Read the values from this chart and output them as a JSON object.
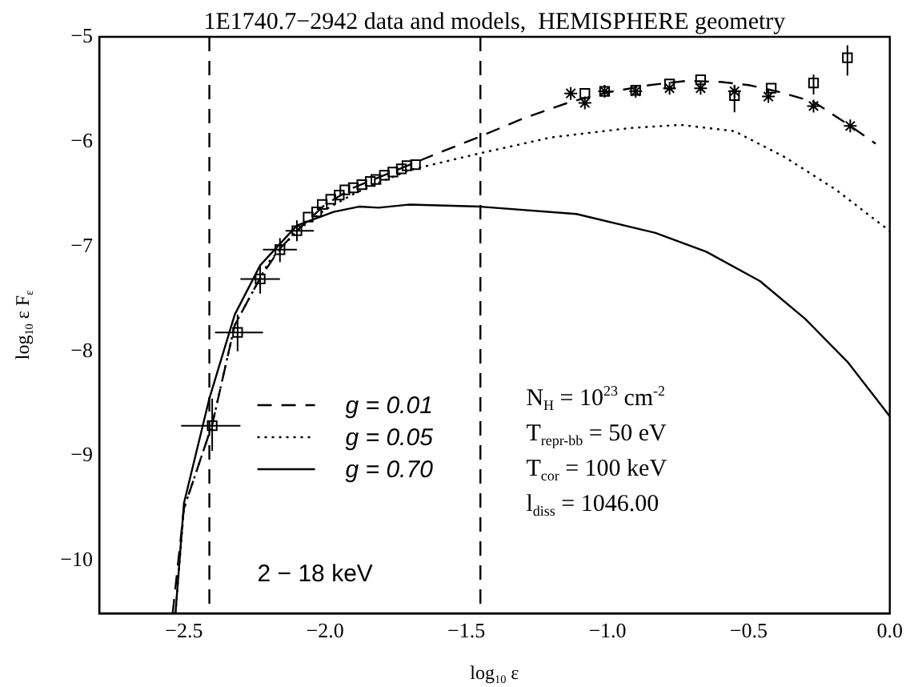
{
  "chart_data": {
    "type": "scatter",
    "title": "1E1740.7−2942 data and models,  HEMISPHERE geometry",
    "xlabel": "log$_{10}$ ε",
    "ylabel": "log$_{10}$ ε F$_{ε}$",
    "xlim": [
      -2.8,
      0.0
    ],
    "xticks": [
      {
        "value": -2.5,
        "label": "−2.5"
      },
      {
        "value": -2.0,
        "label": "−2.0"
      },
      {
        "value": -1.5,
        "label": "−1.5"
      },
      {
        "value": -1.0,
        "label": "−1.0"
      },
      {
        "value": -0.5,
        "label": "−0.5"
      },
      {
        "value": 0.0,
        "label": "0.0"
      }
    ],
    "ylim": [
      -10.5,
      -5
    ],
    "yticks": [
      {
        "value": -10,
        "label": "−10"
      },
      {
        "value": -9,
        "label": "−9"
      },
      {
        "value": -8,
        "label": "−8"
      },
      {
        "value": -7,
        "label": "−7"
      },
      {
        "value": -6,
        "label": "−6"
      },
      {
        "value": -5,
        "label": "−5"
      }
    ],
    "grid": false,
    "legend": "bottom left",
    "ref_lines": [
      {
        "axis": "x",
        "value": -2.41,
        "line_style": "dashed",
        "color": "#000000"
      },
      {
        "axis": "x",
        "value": -1.45,
        "line_style": "dashed",
        "color": "#000000"
      }
    ],
    "annotations": [
      "2 − 18 keV",
      "N$_{H}$ = 10$^{23}$ cm$^{-2}$",
      "T$_{repr-bb}$ = 50 eV",
      "T$_{cor}$ = 100 keV",
      "l$_{diss}$ = 1046.00"
    ],
    "series": [
      {
        "name": "g = 0.01",
        "type": "line",
        "line_style": "dashed",
        "marker": "none",
        "color": "#000000",
        "x": [
          -2.54,
          -2.5,
          -2.4,
          -2.32,
          -2.23,
          -2.16,
          -2.1,
          -2.0,
          -1.9,
          -1.8,
          -1.7,
          -1.6,
          -1.45,
          -1.3,
          -1.13,
          -1.0,
          -0.85,
          -0.72,
          -0.6,
          -0.5,
          -0.4,
          -0.27,
          -0.14,
          -0.05
        ],
        "values": [
          -10.5,
          -9.5,
          -8.7,
          -7.75,
          -7.3,
          -7.02,
          -6.85,
          -6.6,
          -6.44,
          -6.33,
          -6.22,
          -6.11,
          -5.95,
          -5.78,
          -5.62,
          -5.53,
          -5.46,
          -5.42,
          -5.43,
          -5.46,
          -5.52,
          -5.62,
          -5.85,
          -6.02
        ]
      },
      {
        "name": "g = 0.05",
        "type": "line",
        "line_style": "dotted",
        "marker": "none",
        "color": "#000000",
        "x": [
          -2.53,
          -2.5,
          -2.4,
          -2.32,
          -2.2,
          -2.1,
          -2.0,
          -1.9,
          -1.8,
          -1.7,
          -1.45,
          -1.2,
          -0.92,
          -0.74,
          -0.55,
          -0.37,
          -0.19,
          -0.04,
          0.0
        ],
        "values": [
          -10.5,
          -9.5,
          -8.7,
          -7.75,
          -7.15,
          -6.85,
          -6.65,
          -6.5,
          -6.38,
          -6.27,
          -6.11,
          -5.96,
          -5.87,
          -5.84,
          -5.9,
          -6.15,
          -6.46,
          -6.77,
          -6.85
        ]
      },
      {
        "name": "g = 0.70",
        "type": "line",
        "line_style": "solid",
        "marker": "none",
        "color": "#000000",
        "x": [
          -2.53,
          -2.5,
          -2.41,
          -2.32,
          -2.23,
          -2.1,
          -1.97,
          -1.88,
          -1.81,
          -1.7,
          -1.45,
          -1.11,
          -0.83,
          -0.65,
          -0.46,
          -0.3,
          -0.15,
          0.0
        ],
        "values": [
          -10.5,
          -9.45,
          -8.45,
          -7.65,
          -7.18,
          -6.8,
          -6.67,
          -6.62,
          -6.63,
          -6.6,
          -6.62,
          -6.69,
          -6.87,
          -7.05,
          -7.33,
          -7.69,
          -8.1,
          -8.62
        ]
      },
      {
        "marker": "square",
        "color": "#000000",
        "x": [
          -2.4,
          -2.31,
          -2.23,
          -2.16,
          -2.1,
          -2.06,
          -2.03,
          -2.01,
          -1.98,
          -1.95,
          -1.93,
          -1.9,
          -1.87,
          -1.84,
          -1.82,
          -1.79,
          -1.76,
          -1.73,
          -1.71,
          -1.68,
          -1.08,
          -1.01,
          -0.9,
          -0.78,
          -0.67,
          -0.55,
          -0.42,
          -0.27,
          -0.15
        ],
        "values": [
          -8.71,
          -7.82,
          -7.31,
          -7.03,
          -6.85,
          -6.72,
          -6.67,
          -6.6,
          -6.55,
          -6.51,
          -6.46,
          -6.44,
          -6.41,
          -6.38,
          -6.36,
          -6.32,
          -6.29,
          -6.26,
          -6.23,
          -6.22,
          -5.54,
          -5.52,
          -5.51,
          -5.45,
          -5.41,
          -5.56,
          -5.49,
          -5.44,
          -5.2
        ],
        "xerrors": [
          [
            -2.51,
            -2.3
          ],
          [
            -2.39,
            -2.22
          ],
          [
            -2.3,
            -2.16
          ],
          [
            -2.22,
            -2.1
          ],
          [
            -2.14,
            -2.04
          ],
          null,
          null,
          null,
          null,
          null,
          null,
          null,
          null,
          null,
          null,
          null,
          null,
          null,
          null,
          null,
          null,
          null,
          null,
          null,
          null,
          null,
          null,
          null,
          null
        ],
        "errors": [
          [
            -8.95,
            -8.45
          ],
          [
            -8.0,
            -7.65
          ],
          [
            -7.45,
            -7.18
          ],
          [
            -7.15,
            -6.92
          ],
          [
            -6.95,
            -6.75
          ],
          null,
          null,
          null,
          null,
          null,
          null,
          null,
          null,
          null,
          null,
          null,
          null,
          null,
          null,
          null,
          null,
          null,
          null,
          null,
          null,
          [
            -5.72,
            -5.46
          ],
          null,
          [
            -5.55,
            -5.36
          ],
          [
            -5.37,
            -5.08
          ]
        ]
      },
      {
        "marker": "cross",
        "color": "#000000",
        "x": [
          -1.13,
          -1.08,
          -1.01,
          -0.9,
          -0.78,
          -0.67,
          -0.55,
          -0.43,
          -0.27,
          -0.14
        ],
        "values": [
          -5.54,
          -5.63,
          -5.52,
          -5.52,
          -5.49,
          -5.49,
          -5.52,
          -5.57,
          -5.66,
          -5.85
        ]
      }
    ]
  }
}
